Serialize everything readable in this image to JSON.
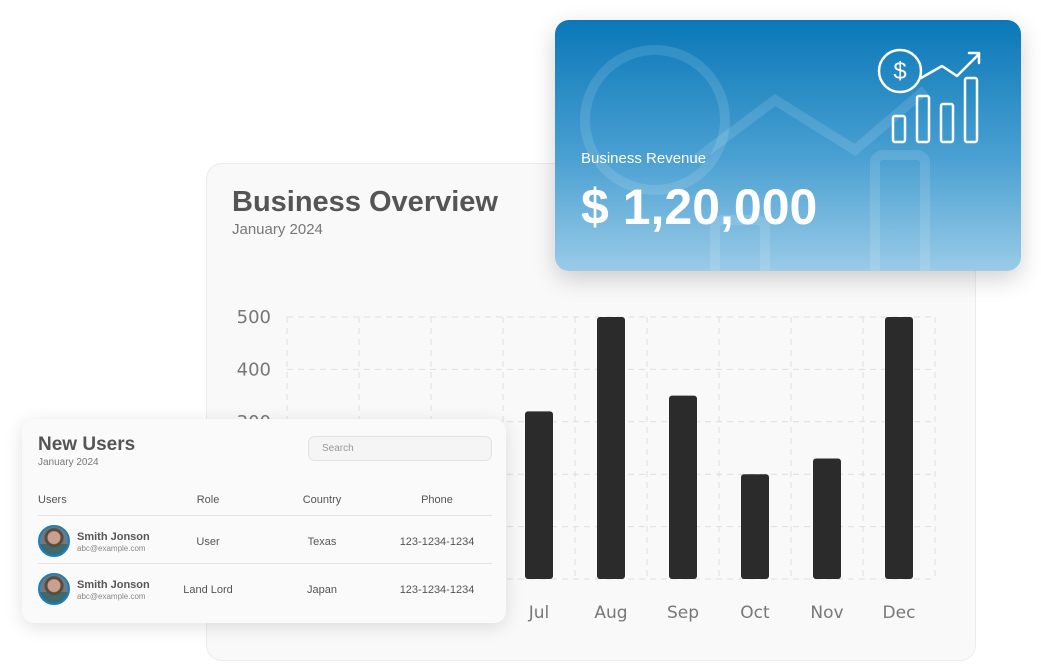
{
  "overview": {
    "title": "Business Overview",
    "subtitle": "January 2024"
  },
  "revenue": {
    "label": "Business Revenue",
    "value": "$ 1,20,000",
    "icon": "revenue-growth-chart-icon",
    "gradient_top": "#0a78b8",
    "gradient_bottom": "#9acbe8"
  },
  "users": {
    "title": "New Users",
    "subtitle": "January 2024",
    "search_placeholder": "Search",
    "columns": [
      "Users",
      "Role",
      "Country",
      "Phone"
    ],
    "rows": [
      {
        "name": "Smith Jonson",
        "email": "abc@example.com",
        "role": "User",
        "country": "Texas",
        "phone": "123-1234-1234"
      },
      {
        "name": "Smith Jonson",
        "email": "abc@example.com",
        "role": "Land Lord",
        "country": "Japan",
        "phone": "123-1234-1234"
      }
    ]
  },
  "chart_data": {
    "type": "bar",
    "categories": [
      "Jul",
      "Aug",
      "Sep",
      "Oct",
      "Nov",
      "Dec"
    ],
    "values": [
      320,
      500,
      350,
      200,
      230,
      500
    ],
    "yticks": [
      "500",
      "400",
      "300"
    ],
    "ylim": [
      0,
      500
    ],
    "grid": true,
    "bar_color": "#2b2b2b"
  }
}
